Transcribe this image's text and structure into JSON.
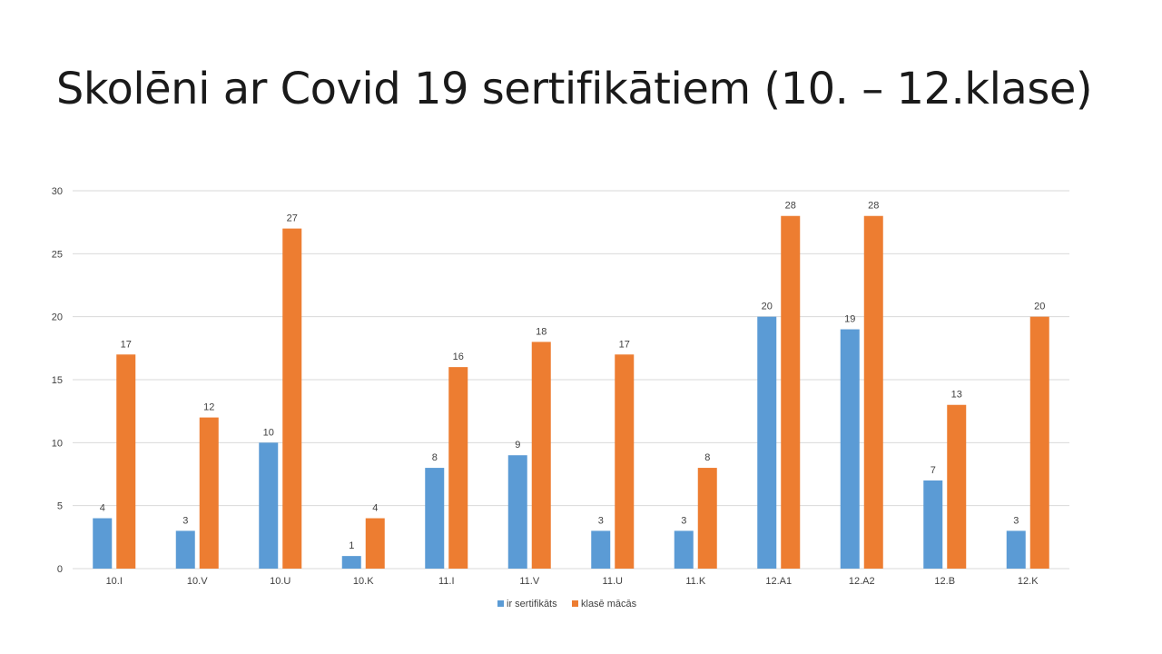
{
  "slide": {
    "title": "Skolēni ar Covid 19 sertifikātiem (10. – 12.klase)"
  },
  "colors": {
    "series1": "#5B9BD5",
    "series2": "#ED7D31",
    "grid": "#D9D9D9",
    "text": "#404040"
  },
  "chart_data": {
    "type": "bar",
    "categories": [
      "10.I",
      "10.V",
      "10.U",
      "10.K",
      "11.I",
      "11.V",
      "11.U",
      "11.K",
      "12.A1",
      "12.A2",
      "12.B",
      "12.K"
    ],
    "series": [
      {
        "name": "ir sertifikāts",
        "values": [
          4,
          3,
          10,
          1,
          8,
          9,
          3,
          3,
          20,
          19,
          7,
          3
        ]
      },
      {
        "name": "klasē mācās",
        "values": [
          17,
          12,
          27,
          4,
          16,
          18,
          17,
          8,
          28,
          28,
          13,
          20
        ]
      }
    ],
    "yticks": [
      0,
      5,
      10,
      15,
      20,
      25,
      30
    ],
    "ylim": [
      0,
      30
    ],
    "grid": true,
    "data_labels": true,
    "legend": "bottom"
  }
}
